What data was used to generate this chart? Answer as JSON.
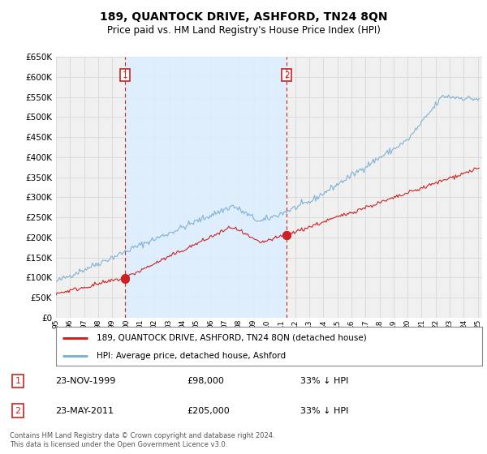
{
  "title": "189, QUANTOCK DRIVE, ASHFORD, TN24 8QN",
  "subtitle": "Price paid vs. HM Land Registry's House Price Index (HPI)",
  "hpi_label": "HPI: Average price, detached house, Ashford",
  "property_label": "189, QUANTOCK DRIVE, ASHFORD, TN24 8QN (detached house)",
  "footnote": "Contains HM Land Registry data © Crown copyright and database right 2024.\nThis data is licensed under the Open Government Licence v3.0.",
  "transaction1_date": "23-NOV-1999",
  "transaction1_price": 98000,
  "transaction1_info": "33% ↓ HPI",
  "transaction2_date": "23-MAY-2011",
  "transaction2_price": 205000,
  "transaction2_info": "33% ↓ HPI",
  "t1_year": 1999.9,
  "t2_year": 2011.4,
  "ylim": [
    0,
    650000
  ],
  "yticks": [
    0,
    50000,
    100000,
    150000,
    200000,
    250000,
    300000,
    350000,
    400000,
    450000,
    500000,
    550000,
    600000,
    650000
  ],
  "xlim_start": 1995,
  "xlim_end": 2025.3,
  "background_color": "#ffffff",
  "plot_bg_color": "#f0f0f0",
  "grid_color": "#d8d8d8",
  "hpi_color": "#7fb3d3",
  "hpi_fill_color": "#d6e8f5",
  "property_color": "#cc2222",
  "vline_color": "#cc2222",
  "marker_color": "#cc2222",
  "shade_color": "#ddeeff"
}
